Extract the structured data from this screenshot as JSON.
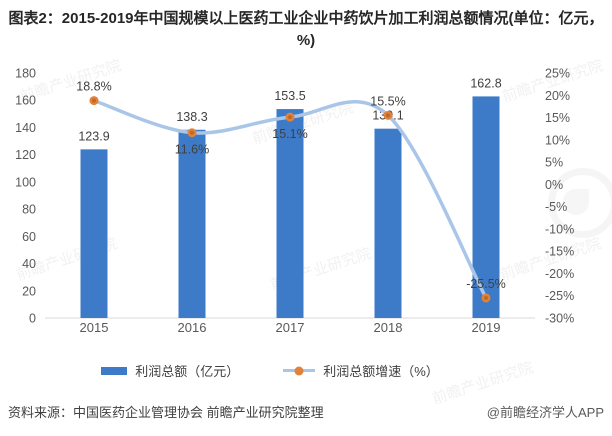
{
  "title": "图表2：2015-2019年中国规模以上医药工业企业中药饮片加工利润总额情况(单位：亿元，%)",
  "chart_data": {
    "type": "bar+line",
    "categories": [
      "2015",
      "2016",
      "2017",
      "2018",
      "2019"
    ],
    "series": [
      {
        "name": "利润总额（亿元）",
        "type": "bar",
        "axis": "left",
        "values": [
          123.9,
          138.3,
          153.5,
          139.1,
          162.8
        ],
        "labels": [
          "123.9",
          "138.3",
          "153.5",
          "139.1",
          "162.8"
        ]
      },
      {
        "name": "利润总额增速（%）",
        "type": "line",
        "axis": "right",
        "values": [
          18.8,
          11.6,
          15.1,
          15.5,
          -25.5
        ],
        "labels": [
          "18.8%",
          "11.6%",
          "15.1%",
          "15.5%",
          "-25.5%"
        ],
        "label_positions": [
          "above",
          "below",
          "below",
          "above",
          "above"
        ]
      }
    ],
    "left_axis": {
      "min": 0,
      "max": 180,
      "step": 20
    },
    "right_axis": {
      "min": -30,
      "max": 25,
      "step": 5,
      "suffix": "%"
    },
    "grid": false,
    "legend_position": "bottom",
    "smooth_line": true
  },
  "colors": {
    "bar": "#3D7BC8",
    "line": "#A9C6E8",
    "marker": "#E0823C",
    "marker_core": "#C2691F",
    "axis_line": "#D9D9D9",
    "tick_label": "#595959",
    "data_label": "#404040"
  },
  "footer": {
    "source": "资料来源：中国医药企业管理协会 前瞻产业研究院整理",
    "credit": "@前瞻经济学人APP"
  },
  "watermark": {
    "text": "前瞻产业研究院"
  }
}
